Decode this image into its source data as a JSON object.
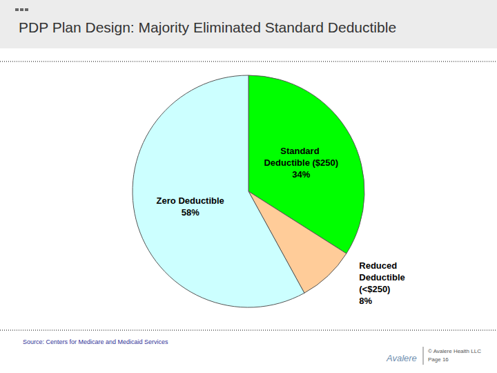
{
  "chart_data": {
    "type": "pie",
    "title": "PDP Plan Design: Majority Eliminated Standard Deductible",
    "categories": [
      "Standard Deductible ($250)",
      "Reduced Deductible (<$250)",
      "Zero Deductible"
    ],
    "values": [
      34,
      8,
      58
    ],
    "value_labels": [
      "34%",
      "8%",
      "58%"
    ],
    "colors": [
      "#00ff00",
      "#ffcc99",
      "#ccffff"
    ],
    "data_labels": true
  },
  "footer": {
    "source": "Source: Centers for Medicare and Medicaid Services",
    "logo": "Avalere",
    "copyright": "© Avalere Health LLC",
    "page": "Page 16"
  }
}
